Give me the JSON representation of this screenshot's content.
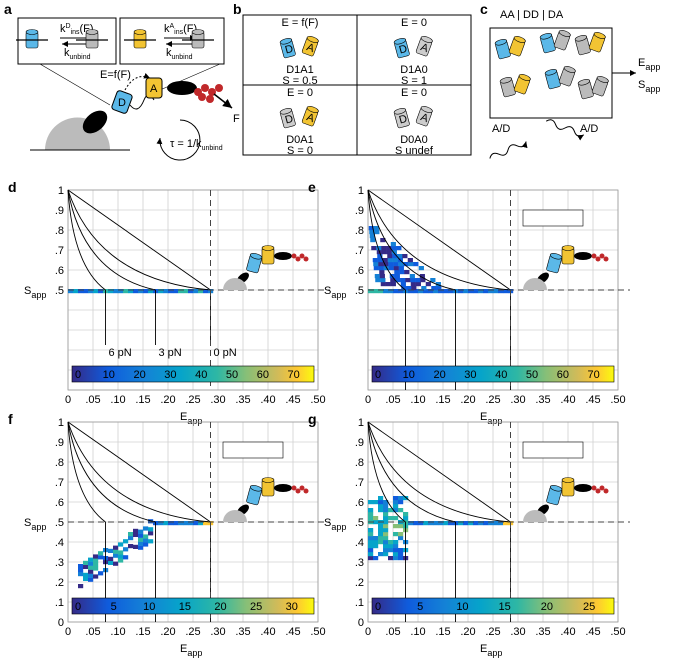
{
  "a": {
    "letter": "a",
    "k1": "k",
    "k1_sup": "D",
    "k1_sub": "ins",
    "k1_arg": "(F)",
    "k2": "k",
    "k2_sub": "unbind",
    "k3": "k",
    "k3_sup": "A",
    "k3_sub": "ins",
    "k3_arg": "(F)",
    "k4": "k",
    "k4_sub": "unbind",
    "efret": "E=f(F)",
    "donor": "D",
    "acceptor": "A",
    "force": "F",
    "tau": "τ = 1/k",
    "tau_sub": "unbind"
  },
  "b": {
    "letter": "b",
    "states": [
      {
        "e": "E = f(F)",
        "name": "D1A1",
        "s": "S = 0.5",
        "d": "D",
        "a": "A"
      },
      {
        "e": "E = 0",
        "name": "D1A0",
        "s": "S = 1",
        "d": "D",
        "a": "A"
      },
      {
        "e": "E = 0",
        "name": "D0A1",
        "s": "S = 0",
        "d": "D",
        "a": "A"
      },
      {
        "e": "E = 0",
        "name": "D0A0",
        "s": "S undef",
        "d": "D",
        "a": "A"
      }
    ]
  },
  "c": {
    "letter": "c",
    "species": "AA | DD | DA",
    "e": "E",
    "e_sub": "app",
    "s": "S",
    "s_sub": "app",
    "excite1": "A/D",
    "excite2": "A/D"
  },
  "plots": [
    {
      "letter": "d",
      "yticks": [
        "1",
        ".9",
        ".8",
        ".7",
        ".6",
        ".5"
      ],
      "xticks": [
        "0",
        ".05",
        ".10",
        ".15",
        ".20",
        ".25",
        ".30",
        ".35",
        ".40",
        ".45",
        ".50"
      ],
      "xlabel": "E",
      "xlabel_sub": "app",
      "ylabel": "S",
      "ylabel_sub": "app",
      "colorbar": [
        "0",
        "10",
        "20",
        "30",
        "40",
        "50",
        "60",
        "70"
      ],
      "forces": [
        "6 pN",
        "3 pN",
        "0 pN"
      ]
    },
    {
      "letter": "e",
      "yticks": [
        "1",
        ".9",
        ".8",
        ".7",
        ".6",
        ".5"
      ],
      "xticks": [
        "0",
        ".05",
        ".10",
        ".15",
        ".20",
        ".25",
        ".30",
        ".35",
        ".40",
        ".45",
        ".50"
      ],
      "xlabel": "E",
      "xlabel_sub": "app",
      "ylabel": "S",
      "ylabel_sub": "app",
      "colorbar": [
        "0",
        "10",
        "20",
        "30",
        "40",
        "50",
        "60",
        "70"
      ]
    },
    {
      "letter": "f",
      "yticks": [
        "1",
        ".9",
        ".8",
        ".7",
        ".6",
        ".5",
        ".4",
        ".3",
        ".2",
        ".1",
        "0"
      ],
      "xticks": [
        "0",
        ".05",
        ".10",
        ".15",
        ".20",
        ".25",
        ".30",
        ".35",
        ".40",
        ".45",
        ".50"
      ],
      "xlabel": "E",
      "xlabel_sub": "app",
      "ylabel": "S",
      "ylabel_sub": "app",
      "colorbar": [
        "0",
        "5",
        "10",
        "15",
        "20",
        "25",
        "30"
      ]
    },
    {
      "letter": "g",
      "yticks": [
        "1",
        ".9",
        ".8",
        ".7",
        ".6",
        ".5",
        ".4",
        ".3",
        ".2",
        ".1",
        "0"
      ],
      "xticks": [
        "0",
        ".05",
        ".10",
        ".15",
        ".20",
        ".25",
        ".30",
        ".35",
        ".40",
        ".45",
        ".50"
      ],
      "xlabel": "E",
      "xlabel_sub": "app",
      "ylabel": "S",
      "ylabel_sub": "app",
      "colorbar": [
        "0",
        "5",
        "10",
        "15",
        "20",
        "25"
      ]
    }
  ]
}
